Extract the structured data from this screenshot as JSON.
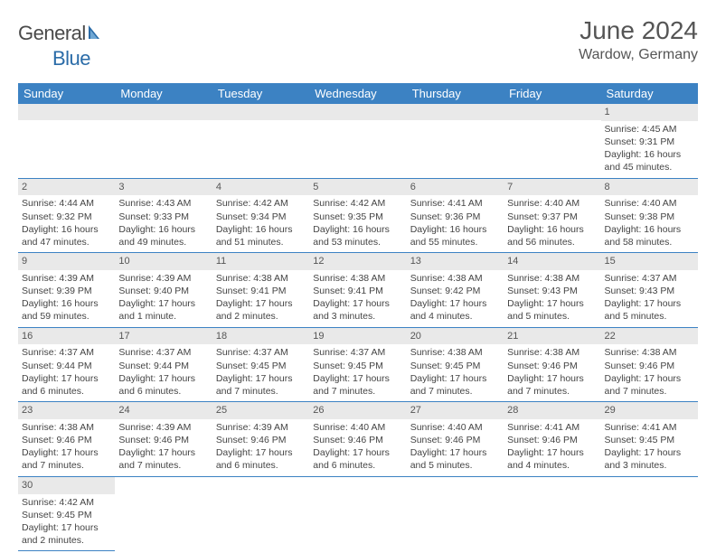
{
  "logo": {
    "text_general": "General",
    "text_blue": "Blue",
    "sail_color": "#2b6ca8"
  },
  "title": "June 2024",
  "location": "Wardow, Germany",
  "colors": {
    "header_bg": "#3c82c3",
    "header_text": "#ffffff",
    "daynum_bg": "#e9e9e9",
    "row_border": "#3c82c3",
    "body_text": "#444444"
  },
  "day_headers": [
    "Sunday",
    "Monday",
    "Tuesday",
    "Wednesday",
    "Thursday",
    "Friday",
    "Saturday"
  ],
  "weeks": [
    [
      null,
      null,
      null,
      null,
      null,
      null,
      {
        "n": "1",
        "sr": "4:45 AM",
        "ss": "9:31 PM",
        "dl": "16 hours and 45 minutes."
      }
    ],
    [
      {
        "n": "2",
        "sr": "4:44 AM",
        "ss": "9:32 PM",
        "dl": "16 hours and 47 minutes."
      },
      {
        "n": "3",
        "sr": "4:43 AM",
        "ss": "9:33 PM",
        "dl": "16 hours and 49 minutes."
      },
      {
        "n": "4",
        "sr": "4:42 AM",
        "ss": "9:34 PM",
        "dl": "16 hours and 51 minutes."
      },
      {
        "n": "5",
        "sr": "4:42 AM",
        "ss": "9:35 PM",
        "dl": "16 hours and 53 minutes."
      },
      {
        "n": "6",
        "sr": "4:41 AM",
        "ss": "9:36 PM",
        "dl": "16 hours and 55 minutes."
      },
      {
        "n": "7",
        "sr": "4:40 AM",
        "ss": "9:37 PM",
        "dl": "16 hours and 56 minutes."
      },
      {
        "n": "8",
        "sr": "4:40 AM",
        "ss": "9:38 PM",
        "dl": "16 hours and 58 minutes."
      }
    ],
    [
      {
        "n": "9",
        "sr": "4:39 AM",
        "ss": "9:39 PM",
        "dl": "16 hours and 59 minutes."
      },
      {
        "n": "10",
        "sr": "4:39 AM",
        "ss": "9:40 PM",
        "dl": "17 hours and 1 minute."
      },
      {
        "n": "11",
        "sr": "4:38 AM",
        "ss": "9:41 PM",
        "dl": "17 hours and 2 minutes."
      },
      {
        "n": "12",
        "sr": "4:38 AM",
        "ss": "9:41 PM",
        "dl": "17 hours and 3 minutes."
      },
      {
        "n": "13",
        "sr": "4:38 AM",
        "ss": "9:42 PM",
        "dl": "17 hours and 4 minutes."
      },
      {
        "n": "14",
        "sr": "4:38 AM",
        "ss": "9:43 PM",
        "dl": "17 hours and 5 minutes."
      },
      {
        "n": "15",
        "sr": "4:37 AM",
        "ss": "9:43 PM",
        "dl": "17 hours and 5 minutes."
      }
    ],
    [
      {
        "n": "16",
        "sr": "4:37 AM",
        "ss": "9:44 PM",
        "dl": "17 hours and 6 minutes."
      },
      {
        "n": "17",
        "sr": "4:37 AM",
        "ss": "9:44 PM",
        "dl": "17 hours and 6 minutes."
      },
      {
        "n": "18",
        "sr": "4:37 AM",
        "ss": "9:45 PM",
        "dl": "17 hours and 7 minutes."
      },
      {
        "n": "19",
        "sr": "4:37 AM",
        "ss": "9:45 PM",
        "dl": "17 hours and 7 minutes."
      },
      {
        "n": "20",
        "sr": "4:38 AM",
        "ss": "9:45 PM",
        "dl": "17 hours and 7 minutes."
      },
      {
        "n": "21",
        "sr": "4:38 AM",
        "ss": "9:46 PM",
        "dl": "17 hours and 7 minutes."
      },
      {
        "n": "22",
        "sr": "4:38 AM",
        "ss": "9:46 PM",
        "dl": "17 hours and 7 minutes."
      }
    ],
    [
      {
        "n": "23",
        "sr": "4:38 AM",
        "ss": "9:46 PM",
        "dl": "17 hours and 7 minutes."
      },
      {
        "n": "24",
        "sr": "4:39 AM",
        "ss": "9:46 PM",
        "dl": "17 hours and 7 minutes."
      },
      {
        "n": "25",
        "sr": "4:39 AM",
        "ss": "9:46 PM",
        "dl": "17 hours and 6 minutes."
      },
      {
        "n": "26",
        "sr": "4:40 AM",
        "ss": "9:46 PM",
        "dl": "17 hours and 6 minutes."
      },
      {
        "n": "27",
        "sr": "4:40 AM",
        "ss": "9:46 PM",
        "dl": "17 hours and 5 minutes."
      },
      {
        "n": "28",
        "sr": "4:41 AM",
        "ss": "9:46 PM",
        "dl": "17 hours and 4 minutes."
      },
      {
        "n": "29",
        "sr": "4:41 AM",
        "ss": "9:45 PM",
        "dl": "17 hours and 3 minutes."
      }
    ],
    [
      {
        "n": "30",
        "sr": "4:42 AM",
        "ss": "9:45 PM",
        "dl": "17 hours and 2 minutes."
      },
      null,
      null,
      null,
      null,
      null,
      null
    ]
  ],
  "labels": {
    "sunrise": "Sunrise:",
    "sunset": "Sunset:",
    "daylight": "Daylight:"
  }
}
